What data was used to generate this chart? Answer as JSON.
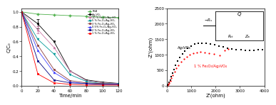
{
  "left_xlabel": "Time/min",
  "left_ylabel": "C/C₀",
  "left_xlim": [
    0,
    120
  ],
  "left_ylim": [
    0,
    1.05
  ],
  "left_yticks": [
    0.0,
    0.2,
    0.4,
    0.6,
    0.8,
    1.0
  ],
  "left_xticks": [
    0,
    20,
    40,
    60,
    80,
    100,
    120
  ],
  "time": [
    0,
    20,
    40,
    60,
    80,
    100,
    120
  ],
  "curves": {
    "RhB": [
      1.0,
      0.97,
      0.96,
      0.95,
      0.94,
      0.93,
      0.925
    ],
    "Ag3VO4": [
      1.0,
      0.84,
      0.6,
      0.2,
      0.08,
      0.05,
      0.033
    ],
    "10% Fe2O3/Ag3VO4": [
      1.0,
      0.76,
      0.52,
      0.2,
      0.07,
      0.04,
      0.03
    ],
    "5% Fe2O3/Ag3VO4": [
      1.0,
      0.63,
      0.43,
      0.15,
      0.06,
      0.03,
      0.025
    ],
    "3% Fe2O3/Ag3VO4": [
      1.0,
      0.55,
      0.22,
      0.07,
      0.04,
      0.03,
      0.022
    ],
    "0.5% Fe2O3/Ag3VO4": [
      1.0,
      0.48,
      0.18,
      0.05,
      0.03,
      0.02,
      0.02
    ],
    "2% Fe2O3/Ag3VO4": [
      1.0,
      0.34,
      0.08,
      0.04,
      0.03,
      0.02,
      0.018
    ],
    "1% Fe2O3/Ag3VO4": [
      1.0,
      0.16,
      0.04,
      0.02,
      0.01,
      0.01,
      0.01
    ]
  },
  "colors": {
    "RhB": "#4daf4a",
    "Ag3VO4": "#000000",
    "10% Fe2O3/Ag3VO4": "#cc79a7",
    "5% Fe2O3/Ag3VO4": "#009999",
    "3% Fe2O3/Ag3VO4": "#8b3a3a",
    "0.5% Fe2O3/Ag3VO4": "#4444ff",
    "2% Fe2O3/Ag3VO4": "#000080",
    "1% Fe2O3/Ag3VO4": "#ff0000"
  },
  "markers": {
    "RhB": "+",
    "Ag3VO4": "s",
    "10% Fe2O3/Ag3VO4": "^",
    "5% Fe2O3/Ag3VO4": "v",
    "3% Fe2O3/Ag3VO4": "s",
    "0.5% Fe2O3/Ag3VO4": "^",
    "2% Fe2O3/Ag3VO4": "s",
    "1% Fe2O3/Ag3VO4": "s"
  },
  "legend_labels": {
    "RhB": "RhB",
    "Ag3VO4": "Ag₃VO₄",
    "10% Fe2O3/Ag3VO4": "10 % Fe₂O₃/Ag₃VO₄",
    "5% Fe2O3/Ag3VO4": "5 % Fe₂O₃/Ag₃VO₄",
    "3% Fe2O3/Ag3VO4": "3 % Fe₂O₃/Ag₃VO₄",
    "0.5% Fe2O3/Ag3VO4": "0.5% Fe₂O₃/Ag₃VO₄",
    "2% Fe2O3/Ag3VO4": "2 % Fe₂O₃/Ag₃VO₄",
    "1% Fe2O3/Ag3VO4": "1 % Fe₂O₃/Ag₃VO₄"
  },
  "right_xlabel": "Z'(ohm)",
  "right_ylabel": "-Z'(ohm)",
  "right_xlim": [
    0,
    4000
  ],
  "right_ylim": [
    0,
    2500
  ],
  "right_yticks": [
    0,
    500,
    1000,
    1500,
    2000,
    2500
  ],
  "right_xticks": [
    0,
    1000,
    2000,
    3000,
    4000
  ],
  "ag3vo4_x": [
    30,
    60,
    90,
    130,
    170,
    220,
    280,
    350,
    430,
    520,
    620,
    730,
    850,
    980,
    1120,
    1270,
    1430,
    1600,
    1770,
    1950,
    2130,
    2310,
    2490,
    2670,
    2850,
    3030,
    3210,
    3390,
    3570,
    3750,
    3920
  ],
  "ag3vo4_y": [
    20,
    55,
    110,
    190,
    290,
    400,
    530,
    670,
    800,
    920,
    1030,
    1130,
    1220,
    1290,
    1340,
    1370,
    1380,
    1370,
    1350,
    1320,
    1280,
    1250,
    1220,
    1190,
    1170,
    1155,
    1145,
    1140,
    1145,
    1155,
    1170
  ],
  "fe2o3_x": [
    20,
    45,
    80,
    120,
    170,
    230,
    300,
    380,
    470,
    570,
    680,
    800,
    930,
    1070,
    1220,
    1380,
    1550,
    1730,
    1940,
    2150,
    2380,
    2530
  ],
  "fe2o3_y": [
    10,
    35,
    80,
    150,
    240,
    340,
    450,
    560,
    670,
    770,
    860,
    940,
    1000,
    1050,
    1080,
    1090,
    1080,
    1060,
    1020,
    980,
    1150,
    1190
  ],
  "label_ag3vo4": "Ag₃VO₄",
  "label_fe2o3": "1 % Fe₂O₃/Ag₃VO₄",
  "bg_color": "#ffffff"
}
